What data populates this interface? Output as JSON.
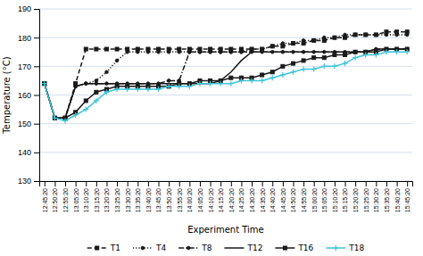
{
  "chart_data": {
    "type": "line",
    "xlabel": "Experiment Time",
    "ylabel": "Temperature (°C)",
    "ylim": [
      130,
      190
    ],
    "yticks": [
      130,
      140,
      150,
      160,
      170,
      180,
      190
    ],
    "grid": true,
    "categories": [
      "12:45:20",
      "12:50:20",
      "12:55:20",
      "13:05:20",
      "13:10:20",
      "13:15:20",
      "13:20:20",
      "13:25:20",
      "13:30:20",
      "13:35:20",
      "13:40:20",
      "13:45:20",
      "13:50:20",
      "13:55:20",
      "14:00:20",
      "14:05:20",
      "14:10:20",
      "14:15:20",
      "14:20:20",
      "14:25:20",
      "14:30:20",
      "14:35:20",
      "14:40:20",
      "14:45:20",
      "14:50:20",
      "14:55:20",
      "15:00:20",
      "15:05:20",
      "15:10:20",
      "15:15:20",
      "15:20:20",
      "15:25:20",
      "15:30:20",
      "15:35:20",
      "15:40:20",
      "15:45:20"
    ],
    "series": [
      {
        "name": "T1",
        "color": "#1a1a1a",
        "line_style": "dashed",
        "marker": "square",
        "values": [
          164,
          152,
          152,
          164,
          176,
          176,
          176,
          176,
          176,
          176,
          176,
          176,
          176,
          176,
          176,
          176,
          176,
          176,
          176,
          176,
          176,
          176,
          177,
          177,
          178,
          178,
          179,
          179,
          180,
          180,
          181,
          181,
          181,
          182,
          182,
          182
        ]
      },
      {
        "name": "T4",
        "color": "#1a1a1a",
        "line_style": "dotted",
        "marker": "point",
        "values": [
          164,
          152,
          152,
          163,
          164,
          165,
          168,
          172,
          175,
          175,
          175,
          175,
          175,
          175,
          175,
          175,
          175,
          175,
          175,
          175,
          176,
          176,
          177,
          178,
          178,
          179,
          179,
          180,
          180,
          181,
          181,
          181,
          181,
          181,
          181,
          181
        ]
      },
      {
        "name": "T8",
        "color": "#1a1a1a",
        "line_style": "dashdot",
        "marker": "point",
        "values": [
          164,
          152,
          152,
          163,
          164,
          164,
          164,
          164,
          164,
          164,
          164,
          164,
          165,
          165,
          175,
          175,
          175,
          175,
          175,
          175,
          175,
          175,
          175,
          175,
          175,
          175,
          175,
          175,
          175,
          175,
          175,
          175,
          176,
          176,
          176,
          176
        ]
      },
      {
        "name": "T12",
        "color": "#1a1a1a",
        "line_style": "solid",
        "values": [
          164,
          152,
          152,
          163,
          164,
          164,
          164,
          164,
          164,
          164,
          164,
          164,
          164,
          164,
          164,
          164,
          164,
          165,
          168,
          172,
          175,
          175,
          175,
          175,
          175,
          175,
          175,
          175,
          175,
          175,
          175,
          175,
          176,
          176,
          176,
          176
        ]
      },
      {
        "name": "T16",
        "color": "#1a1a1a",
        "line_style": "solid",
        "marker": "square",
        "values": [
          164,
          152,
          152,
          154,
          158,
          161,
          162,
          163,
          163,
          163,
          163,
          163,
          163,
          164,
          164,
          165,
          165,
          165,
          166,
          166,
          166,
          167,
          168,
          170,
          171,
          172,
          173,
          173,
          174,
          174,
          175,
          175,
          175,
          176,
          176,
          176
        ]
      },
      {
        "name": "T18",
        "color": "#40c4d8",
        "line_style": "solid",
        "marker": "plus",
        "values": [
          164,
          152,
          151,
          153,
          155,
          158,
          161,
          162,
          162,
          162,
          162,
          162,
          163,
          163,
          163,
          164,
          164,
          164,
          164,
          165,
          165,
          165,
          166,
          167,
          168,
          169,
          169,
          170,
          170,
          171,
          173,
          174,
          174,
          175,
          175,
          175
        ]
      }
    ]
  }
}
